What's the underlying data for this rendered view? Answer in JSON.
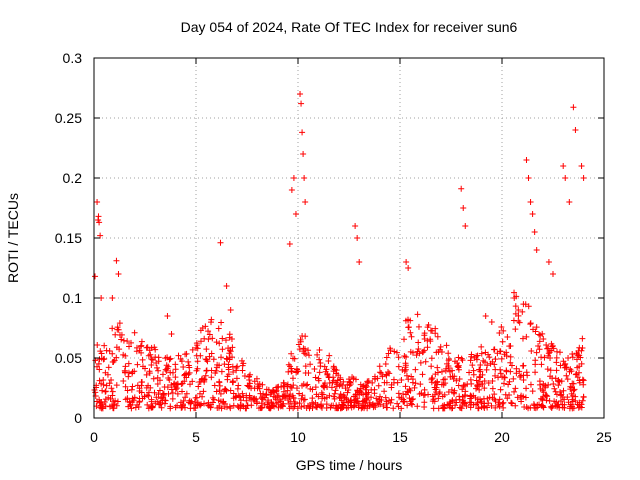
{
  "chart_data": {
    "type": "scatter",
    "title": "Day 054 of 2024, Rate Of TEC Index for receiver sun6",
    "xlabel": "GPS time / hours",
    "ylabel": "ROTI / TECUs",
    "xlim": [
      0,
      25
    ],
    "ylim": [
      0,
      0.3
    ],
    "xticks": [
      0,
      5,
      10,
      15,
      20,
      25
    ],
    "yticks": [
      0,
      0.05,
      0.1,
      0.15,
      0.2,
      0.25,
      0.3
    ],
    "xtick_labels": [
      "0",
      "5",
      "10",
      "15",
      "20",
      "25"
    ],
    "ytick_labels": [
      "0",
      "0.05",
      "0.1",
      "0.15",
      "0.2",
      "0.25",
      "0.3"
    ],
    "grid": true,
    "marker": "+",
    "color": "#ff0000",
    "series": [
      {
        "name": "ROTI",
        "x": [
          0.05,
          0.15,
          0.2,
          0.22,
          0.25,
          0.3,
          0.35,
          1.1,
          1.2,
          0.9,
          3.6,
          3.8,
          6.2,
          6.5,
          6.7,
          9.6,
          9.7,
          9.8,
          9.9,
          10.1,
          10.15,
          10.2,
          10.25,
          10.3,
          10.35,
          12.8,
          12.9,
          13.0,
          15.3,
          15.4,
          18.0,
          18.1,
          18.2,
          21.2,
          21.3,
          21.4,
          21.5,
          21.6,
          21.7,
          22.3,
          22.5,
          23.0,
          23.1,
          23.3,
          23.5,
          23.6,
          23.9,
          24.0,
          20.6,
          20.8,
          19.2,
          19.5
        ],
        "y": [
          0.118,
          0.18,
          0.165,
          0.168,
          0.163,
          0.152,
          0.1,
          0.131,
          0.12,
          0.1,
          0.085,
          0.07,
          0.146,
          0.11,
          0.09,
          0.145,
          0.19,
          0.2,
          0.17,
          0.27,
          0.262,
          0.238,
          0.22,
          0.2,
          0.18,
          0.16,
          0.15,
          0.13,
          0.13,
          0.125,
          0.191,
          0.175,
          0.16,
          0.215,
          0.2,
          0.18,
          0.17,
          0.155,
          0.14,
          0.13,
          0.12,
          0.21,
          0.2,
          0.18,
          0.259,
          0.24,
          0.21,
          0.2,
          0.1,
          0.09,
          0.085,
          0.08
        ]
      }
    ]
  }
}
